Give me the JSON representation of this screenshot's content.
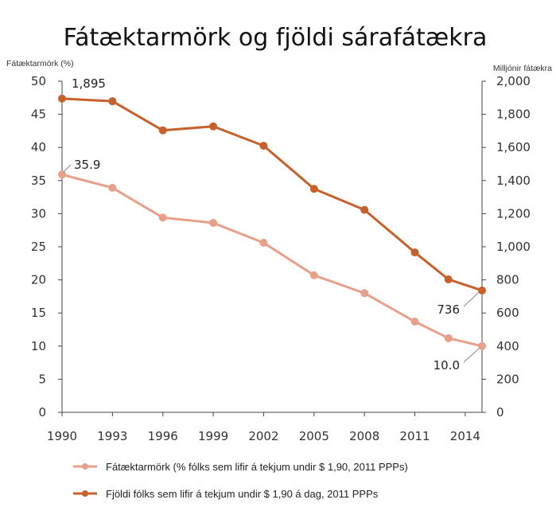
{
  "chart_data": {
    "type": "line",
    "title": "Fátæktarmörk og fjöldi sárafátækra",
    "y_left_label": "Fátæktarmörk (%)",
    "y_right_label": "Milljónir fátækra",
    "x": [
      1990,
      1993,
      1996,
      1999,
      2002,
      2005,
      2008,
      2011,
      2013,
      2015
    ],
    "x_ticks": [
      "1990",
      "1993",
      "1996",
      "1999",
      "2002",
      "2005",
      "2008",
      "2011",
      "2014"
    ],
    "x_tick_values": [
      1990,
      1993,
      1996,
      1999,
      2002,
      2005,
      2008,
      2011,
      2014
    ],
    "ylim_left": [
      0,
      50
    ],
    "yticks_left": [
      "0",
      "5",
      "10",
      "15",
      "20",
      "25",
      "30",
      "35",
      "40",
      "45",
      "50"
    ],
    "ylim_right": [
      0,
      2000
    ],
    "yticks_right": [
      "0",
      "200",
      "400",
      "600",
      "800",
      "1,000",
      "1,200",
      "1,400",
      "1,600",
      "1,800",
      "2,000"
    ],
    "series": [
      {
        "name": "Fátæktarmörk (% fólks sem lifir á tekjum undir $ 1,90, 2011 PPPs)",
        "axis": "left",
        "color": "#e8a08a",
        "values": [
          35.9,
          33.9,
          29.4,
          28.6,
          25.6,
          20.7,
          18.0,
          13.7,
          11.2,
          10.0
        ]
      },
      {
        "name": "Fjöldi fólks sem lifir á tekjum undir $ 1,90 á dag, 2011 PPPs",
        "axis": "right",
        "color": "#c8602c",
        "values": [
          1895,
          1879,
          1703,
          1727,
          1610,
          1350,
          1223,
          966,
          803,
          736
        ]
      }
    ],
    "annotations": [
      {
        "text": "1,895",
        "series": 1,
        "index": 0
      },
      {
        "text": "35.9",
        "series": 0,
        "index": 0
      },
      {
        "text": "736",
        "series": 1,
        "index": 9
      },
      {
        "text": "10.0",
        "series": 0,
        "index": 9
      }
    ],
    "grid": false,
    "legend_position": "bottom"
  }
}
